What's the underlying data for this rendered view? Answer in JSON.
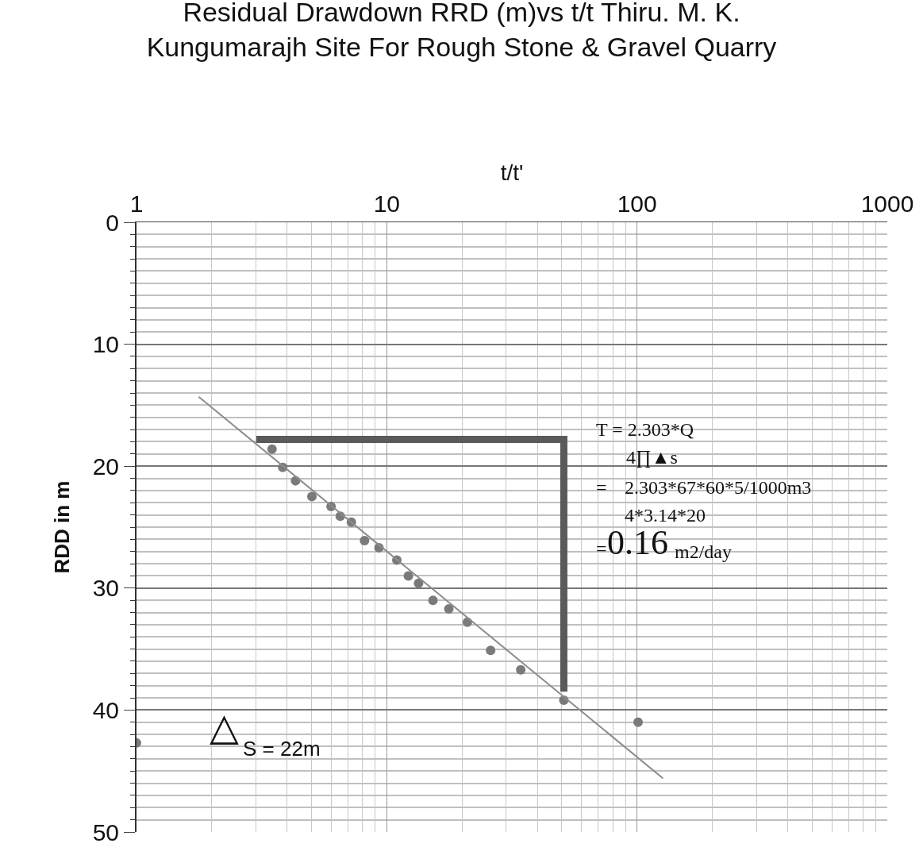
{
  "chart_data": {
    "type": "scatter",
    "title": "Residual Drawdown RRD (m)vs t/t Thiru. M. K. Kungumarajh Site For Rough Stone & Gravel Quarry",
    "xlabel": "t/t'",
    "ylabel": "RDD in m",
    "log": "x",
    "xlim": [
      1,
      1000
    ],
    "xticks": [
      1,
      10,
      100,
      1000
    ],
    "ylim": [
      50,
      0
    ],
    "yticks": [
      0,
      10,
      20,
      30,
      40,
      50
    ],
    "grid": true,
    "marker": "circle",
    "series": [
      {
        "color": "#7a7a7a",
        "x": [
          1,
          3.48,
          3.84,
          4.32,
          5.02,
          5.99,
          6.52,
          7.22,
          8.15,
          9.31,
          10.97,
          12.2,
          13.4,
          15.3,
          17.7,
          21.0,
          26.0,
          34.3,
          51.0,
          101
        ],
        "values": [
          42.7,
          18.6,
          20.1,
          21.2,
          22.5,
          23.3,
          24.1,
          24.6,
          26.1,
          26.7,
          27.7,
          29.0,
          29.6,
          31.0,
          31.7,
          32.8,
          35.1,
          36.7,
          39.2,
          41.0
        ]
      },
      {
        "type": "line",
        "marker": "none",
        "color": "#8c8c8c",
        "x": [
          1.77,
          127
        ],
        "values": [
          14.3,
          45.6
        ]
      },
      {
        "type": "line",
        "marker": "none",
        "color": "#5a5a5a",
        "x": [
          3.01,
          51,
          51
        ],
        "values": [
          17.8,
          17.8,
          38.5
        ]
      }
    ],
    "annotations": [
      "T = 2.303*Q",
      "4∏▲s",
      "=",
      "2.303*67*60*5/1000m3",
      "4*3.14*20",
      "=",
      "0.16",
      "m2/day",
      "△",
      "S = 22m"
    ]
  }
}
